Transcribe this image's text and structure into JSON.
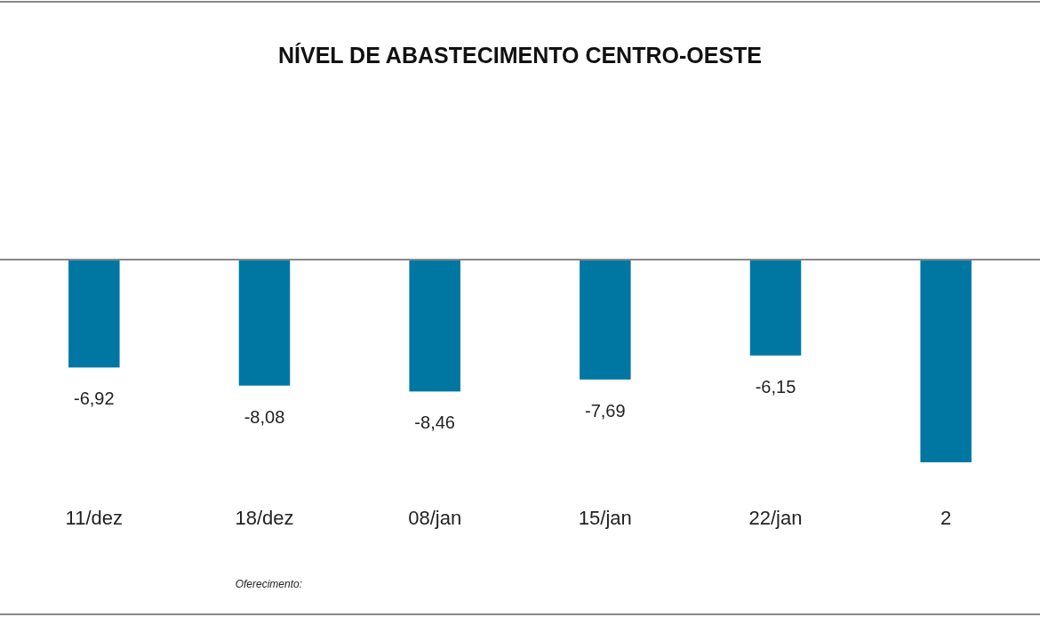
{
  "chart_data": {
    "type": "bar",
    "title": "NÍVEL DE ABASTECIMENTO CENTRO-OESTE",
    "categories": [
      "11/dez",
      "18/dez",
      "08/jan",
      "15/jan",
      "22/jan",
      "2"
    ],
    "values": [
      -6.92,
      -8.08,
      -8.46,
      -7.69,
      -6.15,
      -13.0
    ],
    "value_labels": [
      "-6,92",
      "-8,08",
      "-8,46",
      "-7,69",
      "-6,15",
      null
    ],
    "color": "#0077a3",
    "annotations": [
      "Oferecimento:"
    ]
  }
}
